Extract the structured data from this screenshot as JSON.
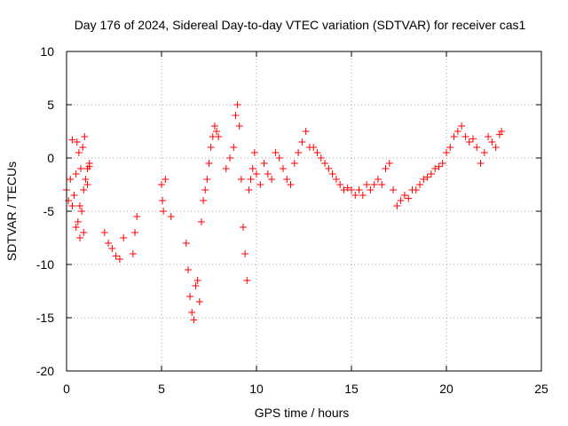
{
  "chart_data": {
    "type": "scatter",
    "title": "Day 176 of 2024, Sidereal Day-to-day VTEC variation (SDTVAR) for receiver cas1",
    "xlabel": "GPS time / hours",
    "ylabel": "SDTVAR / TECUs",
    "xlim": [
      0,
      25
    ],
    "ylim": [
      -20,
      10
    ],
    "xticks": [
      0,
      5,
      10,
      15,
      20,
      25
    ],
    "yticks": [
      -20,
      -15,
      -10,
      -5,
      0,
      5,
      10
    ],
    "xtick_labels": [
      "0",
      "5",
      "10",
      "15",
      "20",
      "25"
    ],
    "ytick_labels": [
      "-20",
      "-15",
      "-10",
      "-5",
      "0",
      "5",
      "10"
    ],
    "grid": true,
    "marker": "+",
    "series_color": "#ff0000",
    "series": [
      {
        "name": "SDTVAR",
        "x": [
          0.0,
          0.1,
          0.2,
          0.3,
          0.4,
          0.5,
          0.6,
          0.7,
          0.8,
          0.9,
          1.0,
          1.1,
          1.2,
          0.55,
          0.65,
          0.75,
          0.85,
          0.95,
          0.3,
          0.5,
          0.7,
          0.9,
          1.1,
          1.2,
          2.0,
          2.2,
          2.4,
          2.6,
          2.8,
          3.0,
          3.5,
          3.6,
          3.7,
          5.0,
          5.05,
          5.1,
          5.2,
          5.5,
          6.3,
          6.4,
          6.5,
          6.6,
          6.7,
          6.8,
          6.9,
          7.0,
          7.1,
          7.2,
          7.3,
          7.4,
          7.5,
          7.6,
          7.7,
          7.8,
          7.9,
          8.0,
          8.4,
          8.6,
          8.8,
          8.9,
          9.0,
          9.1,
          9.2,
          9.3,
          9.4,
          9.5,
          9.6,
          9.7,
          9.8,
          9.9,
          10.0,
          10.2,
          10.4,
          10.6,
          10.8,
          11.0,
          11.2,
          11.4,
          11.6,
          11.8,
          12.0,
          12.2,
          12.4,
          12.6,
          12.8,
          13.0,
          13.2,
          13.4,
          13.6,
          13.8,
          14.0,
          14.2,
          14.4,
          14.6,
          14.8,
          15.0,
          15.2,
          15.4,
          15.6,
          15.8,
          16.0,
          16.2,
          16.4,
          16.6,
          16.8,
          17.0,
          17.2,
          17.4,
          17.6,
          17.8,
          18.0,
          18.2,
          18.4,
          18.6,
          18.8,
          19.0,
          19.2,
          19.4,
          19.6,
          19.8,
          20.0,
          20.2,
          20.4,
          20.6,
          20.8,
          21.0,
          21.2,
          21.4,
          21.6,
          21.8,
          22.0,
          22.2,
          22.4,
          22.6,
          22.8,
          22.9
        ],
        "y": [
          -3.0,
          -4.0,
          -2.0,
          -4.5,
          -3.5,
          -1.5,
          -6.0,
          -7.5,
          -5.0,
          -3.0,
          -2.0,
          -1.0,
          -0.5,
          1.5,
          0.5,
          -1.0,
          1.0,
          2.0,
          1.7,
          -6.5,
          -4.5,
          -7.0,
          -2.5,
          -0.8,
          -7.0,
          -8.0,
          -8.5,
          -9.2,
          -9.5,
          -7.5,
          -9.0,
          -7.0,
          -5.5,
          -2.5,
          -4.0,
          -5.0,
          -2.0,
          -5.5,
          -8.0,
          -10.5,
          -13.0,
          -14.5,
          -15.2,
          -12.0,
          -11.5,
          -13.5,
          -6.0,
          -4.0,
          -3.0,
          -2.0,
          -0.5,
          1.0,
          2.0,
          3.0,
          2.5,
          2.0,
          -1.0,
          0.0,
          1.0,
          4.0,
          5.0,
          3.0,
          -2.0,
          -6.5,
          -9.0,
          -11.5,
          -3.0,
          -2.0,
          -1.0,
          0.5,
          -1.5,
          -2.5,
          -0.5,
          -1.5,
          -2.0,
          0.5,
          0.0,
          -1.0,
          -2.0,
          -2.5,
          -0.5,
          0.5,
          1.5,
          2.5,
          1.0,
          1.0,
          0.5,
          0.0,
          -0.5,
          -1.0,
          -1.5,
          -2.0,
          -2.5,
          -3.0,
          -2.8,
          -3.0,
          -3.5,
          -3.0,
          -3.5,
          -2.5,
          -3.0,
          -2.5,
          -2.0,
          -2.5,
          -1.0,
          -0.5,
          -3.0,
          -4.5,
          -4.0,
          -3.5,
          -3.8,
          -3.0,
          -3.0,
          -2.5,
          -2.0,
          -1.8,
          -1.5,
          -1.0,
          -0.8,
          -0.5,
          0.5,
          1.0,
          2.0,
          2.5,
          3.0,
          2.0,
          1.5,
          1.8,
          1.0,
          -0.5,
          0.5,
          2.0,
          1.5,
          1.0,
          2.2,
          2.5
        ]
      }
    ]
  }
}
